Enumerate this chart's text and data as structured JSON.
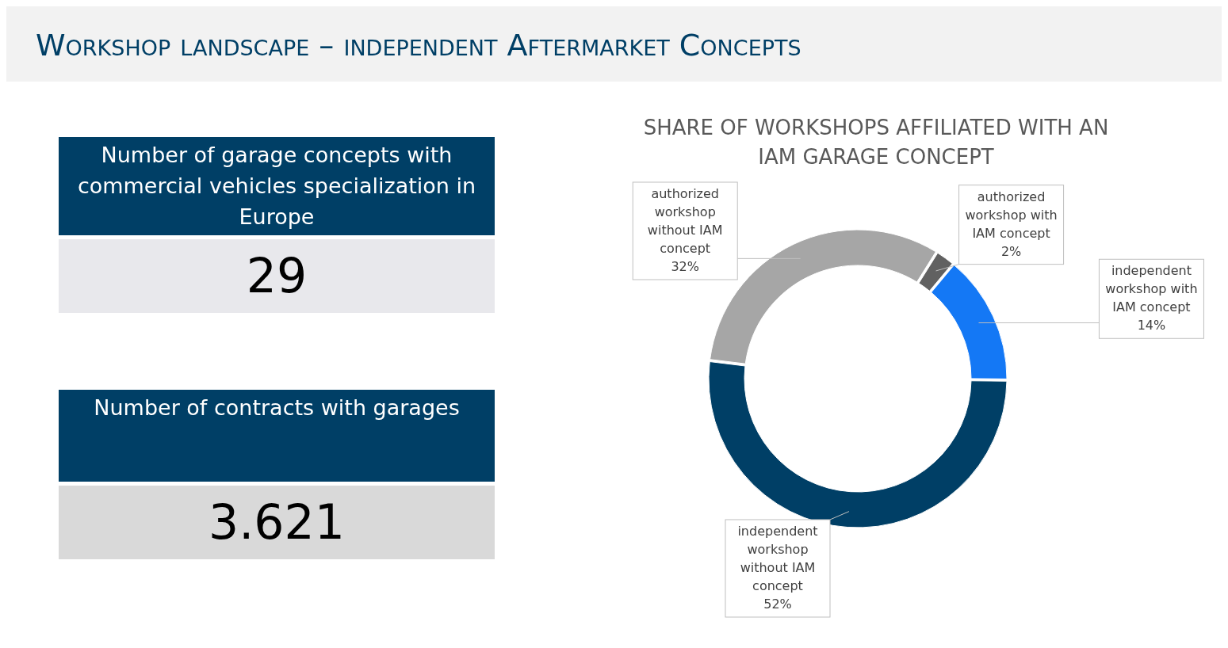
{
  "chart_data": [
    {
      "type": "other",
      "title": "Workshop landscape – independent Aftermarket Concepts"
    },
    {
      "type": "other",
      "title": "Number of garage concepts with commercial vehicles specialization in Europe",
      "annotations": [
        "29"
      ]
    },
    {
      "type": "other",
      "title": "Number of contracts with garages",
      "annotations": [
        "3.621"
      ]
    },
    {
      "type": "donut",
      "title": "SHARE OF WORKSHOPS AFFILIATED WITH AN IAM GARAGE CONCEPT",
      "categories": [
        "authorized workshop with IAM concept",
        "independent workshop with IAM concept",
        "independent workshop without IAM concept",
        "authorized workshop without IAM concept"
      ],
      "values": [
        2,
        14,
        52,
        32
      ],
      "colors": [
        "#616161",
        "#1478f5",
        "#003f66",
        "#a6a6a6"
      ],
      "value_labels": [
        "2%",
        "14%",
        "52%",
        "32%"
      ]
    }
  ]
}
